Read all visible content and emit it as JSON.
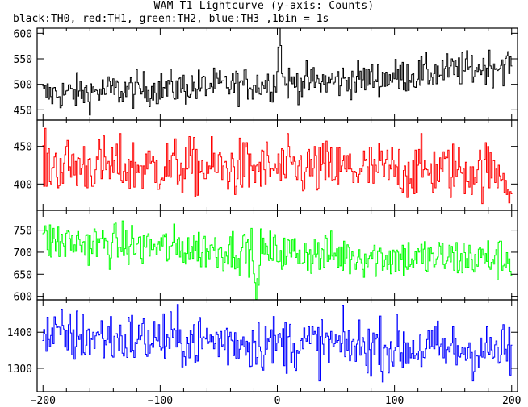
{
  "title": "WAM T1 Lightcurve (y-axis: Counts)",
  "subtitle": "black:TH0, red:TH1, green:TH2, blue:TH3 ,1bin = 1s",
  "chart_data": {
    "type": "line",
    "xlim": [
      -205,
      205
    ],
    "xticks": [
      -200,
      -100,
      0,
      100,
      200
    ],
    "bin_seconds": 1,
    "panels": [
      {
        "name": "TH0",
        "color": "#000000",
        "ylim": [
          430,
          610
        ],
        "yticks": [
          450,
          500,
          550,
          600
        ],
        "trend": [
          [
            -200,
            480
          ],
          [
            -120,
            490
          ],
          [
            -40,
            498
          ],
          [
            0,
            503
          ],
          [
            40,
            505
          ],
          [
            100,
            515
          ],
          [
            150,
            527
          ],
          [
            200,
            540
          ]
        ],
        "noise_sd": 17,
        "features": [
          {
            "x": 2,
            "value": 610,
            "label": "burst peak"
          }
        ]
      },
      {
        "name": "TH1",
        "color": "#ff0000",
        "ylim": [
          365,
          485
        ],
        "yticks": [
          400,
          450
        ],
        "trend": [
          [
            -200,
            425
          ],
          [
            0,
            420
          ],
          [
            200,
            418
          ]
        ],
        "noise_sd": 19,
        "features": [
          {
            "x": 198,
            "value": 375,
            "label": "end drop"
          }
        ]
      },
      {
        "name": "TH2",
        "color": "#00ff00",
        "ylim": [
          592,
          795
        ],
        "yticks": [
          600,
          650,
          700,
          750
        ],
        "trend": [
          [
            -200,
            725
          ],
          [
            -100,
            712
          ],
          [
            0,
            700
          ],
          [
            100,
            688
          ],
          [
            200,
            685
          ]
        ],
        "noise_sd": 24,
        "features": [
          {
            "x": -18,
            "value": 593,
            "label": "dip"
          }
        ]
      },
      {
        "name": "TH3",
        "color": "#0000ff",
        "ylim": [
          1235,
          1490
        ],
        "yticks": [
          1300,
          1400
        ],
        "trend": [
          [
            -200,
            1390
          ],
          [
            0,
            1370
          ],
          [
            200,
            1345
          ]
        ],
        "noise_sd": 38,
        "features": []
      }
    ]
  }
}
